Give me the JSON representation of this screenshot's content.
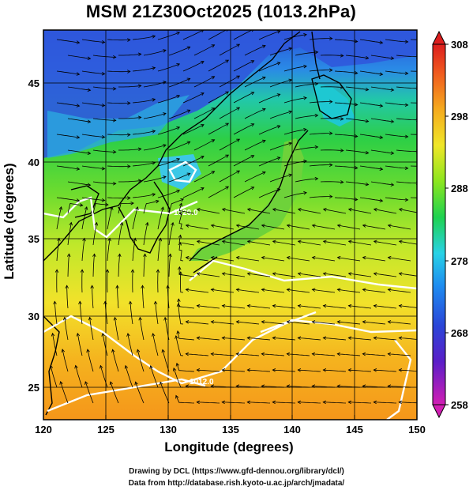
{
  "title": "MSM 21Z30Oct2025 (1013.2hPa)",
  "x_axis": {
    "label": "Longitude (degrees)",
    "ticks": [
      "120",
      "125",
      "130",
      "135",
      "140",
      "145",
      "150"
    ],
    "range": [
      120,
      150
    ]
  },
  "y_axis": {
    "label": "Latitude  (degrees)",
    "ticks": [
      "25",
      "30",
      "35",
      "40",
      "45"
    ],
    "range": [
      22.5,
      47.5
    ]
  },
  "colorbar": {
    "ticks": [
      "258",
      "268",
      "278",
      "288",
      "298",
      "308"
    ],
    "range": [
      258,
      308
    ],
    "colors": [
      "#d21eb4",
      "#3c32c8",
      "#1e78f0",
      "#28d2e6",
      "#1ed250",
      "#96e61e",
      "#f0e628",
      "#f5aa1e",
      "#f05a1e",
      "#dc1e1e"
    ]
  },
  "contour_labels": [
    "1012.0",
    "1020.0"
  ],
  "map_colors": {
    "ocean_warm": "#f59a1a",
    "ocean_mid": "#f5e22a",
    "ocean_cool": "#3cd23c",
    "cold_land": "#2a5ae6",
    "coast": "#000000"
  },
  "footer": {
    "line1": "Drawing by DCL (https://www.gfd-dennou.org/library/dcl/)",
    "line2": "Data from http://database.rish.kyoto-u.ac.jp/arch/jmadata/"
  }
}
